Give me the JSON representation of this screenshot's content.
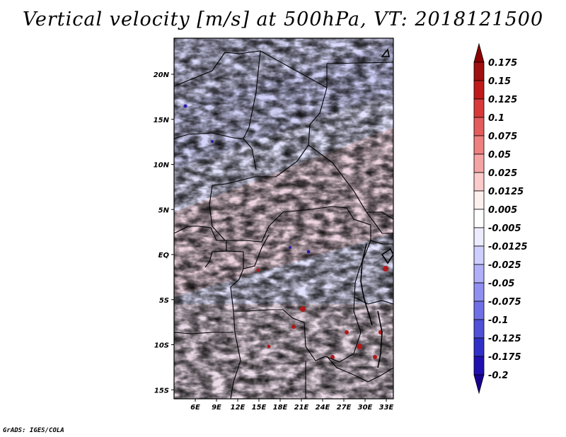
{
  "title": "Vertical velocity [m/s] at 500hPa, VT: 2018121500",
  "credit": "GrADS: IGES/COLA",
  "map": {
    "lon_range": [
      3,
      34
    ],
    "lat_range": [
      -16,
      24
    ],
    "lon_ticks": [
      "6E",
      "9E",
      "12E",
      "15E",
      "18E",
      "21E",
      "24E",
      "27E",
      "30E",
      "33E"
    ],
    "lat_ticks": [
      "20N",
      "15N",
      "10N",
      "5N",
      "EQ",
      "5S",
      "10S",
      "15S"
    ]
  },
  "colorbar": {
    "levels": [
      "0.175",
      "0.15",
      "0.125",
      "0.1",
      "0.075",
      "0.05",
      "0.025",
      "0.0125",
      "0.005",
      "-0.005",
      "-0.0125",
      "-0.025",
      "-0.05",
      "-0.075",
      "-0.1",
      "-0.125",
      "-0.175",
      "-0.2"
    ],
    "colors": [
      "#8b0000",
      "#a01010",
      "#c01a1a",
      "#d83a3a",
      "#e45c5c",
      "#ee8080",
      "#f4a4a4",
      "#fbcaca",
      "#fff0f0",
      "#ffffff",
      "#ececff",
      "#cfcfff",
      "#b0b0f8",
      "#9090f0",
      "#7070e6",
      "#5050d8",
      "#3030c8",
      "#2010b0",
      "#1a0090"
    ]
  }
}
